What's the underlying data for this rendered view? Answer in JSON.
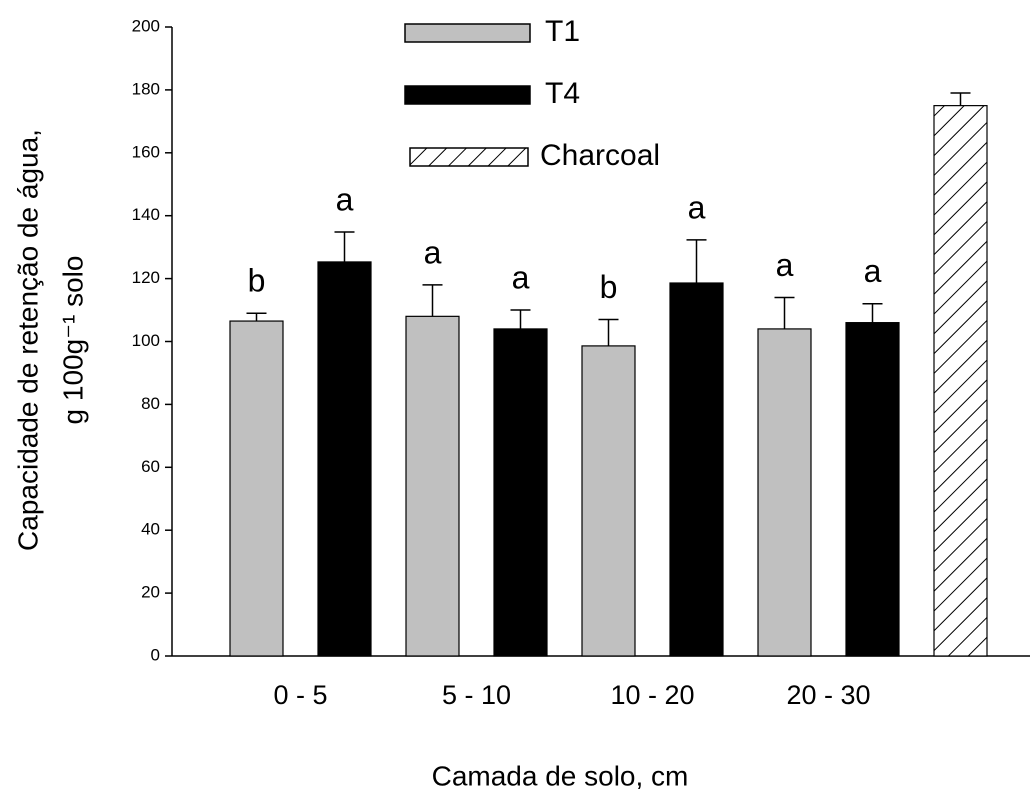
{
  "chart_data": {
    "type": "bar",
    "xlabel": "Camada de solo, cm",
    "ylabel": [
      "Capacidade de retenção de água,",
      "g 100g⁻¹ solo"
    ],
    "categories": [
      "0 - 5",
      "5 - 10",
      "10 - 20",
      "20 - 30",
      null
    ],
    "series": [
      {
        "name": "T1",
        "color": "#c0c0c0",
        "hatch": false,
        "values": [
          106.5,
          108,
          98.6,
          104,
          null
        ],
        "errors": [
          2.5,
          10,
          8.4,
          10,
          null
        ],
        "letters": [
          "b",
          "a",
          "b",
          "a",
          null
        ]
      },
      {
        "name": "T4",
        "color": "#000000",
        "hatch": false,
        "values": [
          125.3,
          104,
          118.6,
          106,
          null
        ],
        "errors": [
          9.5,
          6,
          13.7,
          6,
          null
        ],
        "letters": [
          "a",
          "a",
          "a",
          "a",
          null
        ]
      },
      {
        "name": "Charcoal",
        "color": "#ffffff",
        "hatch": true,
        "values": [
          null,
          null,
          null,
          null,
          175
        ],
        "errors": [
          null,
          null,
          null,
          null,
          4
        ],
        "letters": [
          null,
          null,
          null,
          null,
          null
        ]
      }
    ],
    "ylim": [
      0,
      200
    ],
    "yticks": [
      0,
      20,
      40,
      60,
      80,
      100,
      120,
      140,
      160,
      180,
      200
    ],
    "grid": false,
    "legend": "top"
  }
}
